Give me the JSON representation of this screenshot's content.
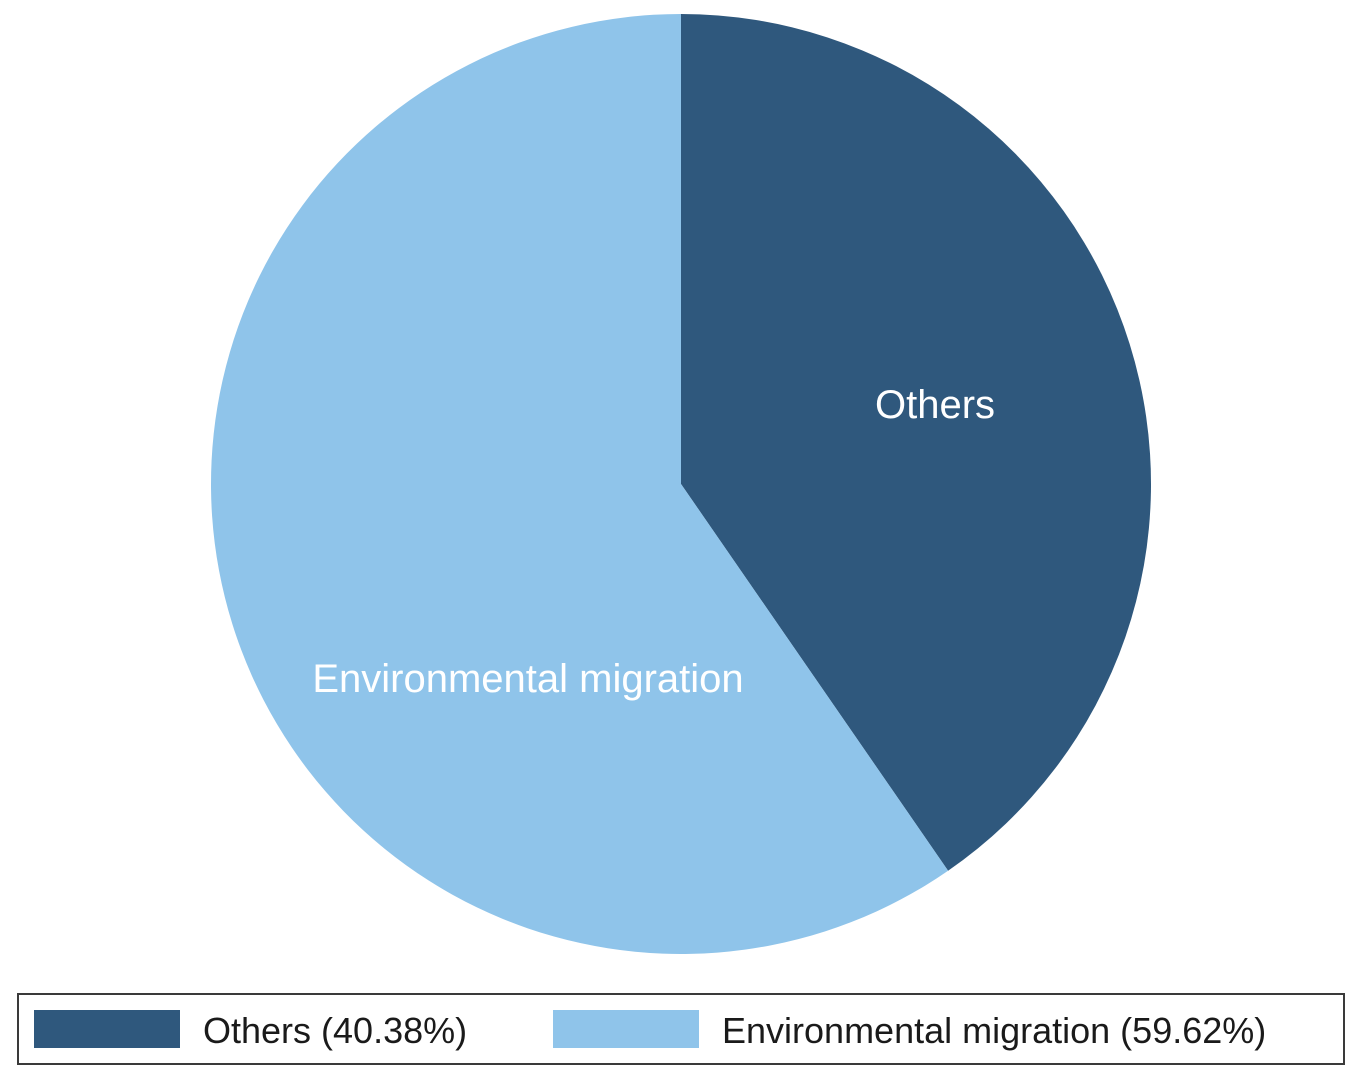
{
  "chart_data": {
    "type": "pie",
    "start_angle_deg": 0,
    "direction": "clockwise",
    "slices": [
      {
        "label": "Others",
        "value": 40.38,
        "color": "#2f587d",
        "legend": "Others (40.38%)"
      },
      {
        "label": "Environmental migration",
        "value": 59.62,
        "color": "#8fc4ea",
        "legend": "Environmental migration (59.62%)"
      }
    ],
    "legend_position": "bottom"
  }
}
